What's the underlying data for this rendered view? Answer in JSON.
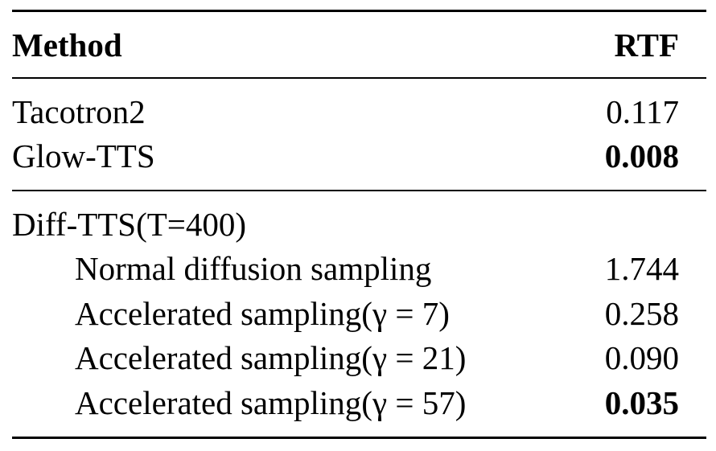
{
  "table": {
    "header": [
      "Method",
      "RTF"
    ],
    "rows": [
      [
        "Tacotron2",
        "0.117"
      ],
      [
        "Glow-TTS",
        "0.008"
      ],
      [
        "Diff-TTS(T=400)"
      ],
      [
        "Normal diffusion sampling",
        "1.744"
      ],
      [
        "Accelerated sampling(γ = 7)",
        "0.258"
      ],
      [
        "Accelerated sampling(γ = 21)",
        "0.090"
      ],
      [
        "Accelerated sampling(γ = 57)",
        "0.035"
      ]
    ]
  }
}
